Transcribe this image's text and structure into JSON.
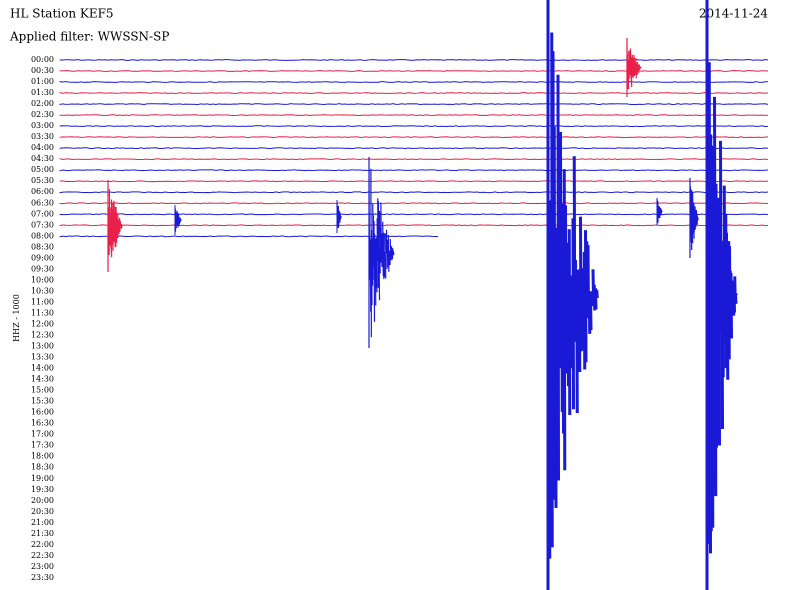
{
  "header": {
    "station": "HL Station KEF5",
    "date": "2014-11-24",
    "filter": "Applied filter: WWSSN-SP"
  },
  "axis_label": "HHZ - 1000",
  "row_labels": [
    "00:00",
    "00:30",
    "01:00",
    "01:30",
    "02:00",
    "02:30",
    "03:00",
    "03:30",
    "04:00",
    "04:30",
    "05:00",
    "05:30",
    "06:00",
    "06:30",
    "07:00",
    "07:30",
    "08:00",
    "08:30",
    "09:00",
    "09:30",
    "10:00",
    "10:30",
    "11:00",
    "11:30",
    "12:00",
    "12:30",
    "13:00",
    "13:30",
    "14:00",
    "14:30",
    "15:00",
    "15:30",
    "16:00",
    "16:30",
    "17:00",
    "17:30",
    "18:00",
    "18:30",
    "19:00",
    "19:30",
    "20:00",
    "20:30",
    "21:00",
    "21:30",
    "22:00",
    "22:30",
    "23:00",
    "23:30"
  ]
}
